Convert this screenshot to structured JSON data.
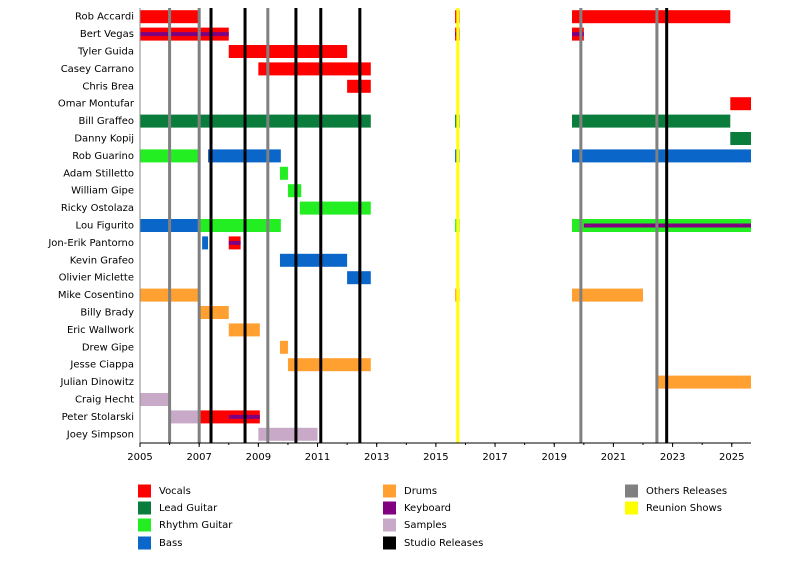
{
  "chart_data": {
    "type": "timeline",
    "xlim": [
      2005,
      2025.65
    ],
    "xticks": [
      2005,
      2007,
      2009,
      2011,
      2013,
      2015,
      2017,
      2019,
      2021,
      2023,
      2025
    ],
    "series": [
      {
        "name": "Vocals",
        "color": "#ff0000"
      },
      {
        "name": "Lead Guitar",
        "color": "#0a7d3c"
      },
      {
        "name": "Rhythm Guitar",
        "color": "#22ee22"
      },
      {
        "name": "Bass",
        "color": "#0a66c8"
      },
      {
        "name": "Drums",
        "color": "#ffa030"
      },
      {
        "name": "Keyboard",
        "color": "#800080"
      },
      {
        "name": "Samples",
        "color": "#c8aac8"
      },
      {
        "name": "Studio Releases",
        "color": "#000000",
        "lines": [
          2007.4,
          2008.55,
          2010.27,
          2011.11,
          2012.43,
          2022.8
        ]
      },
      {
        "name": "Others Releases",
        "color": "#808080",
        "lines": [
          2006.0,
          2007.0,
          2009.32,
          2019.9,
          2022.47
        ]
      },
      {
        "name": "Reunion Shows",
        "color": "#ffff00",
        "lines": [
          2015.74
        ]
      }
    ],
    "rows": [
      {
        "name": "Rob Accardi",
        "bars": [
          {
            "role": "Vocals",
            "start": 2005,
            "end": 2007
          },
          {
            "role": "Vocals",
            "start": 2015.65,
            "end": 2015.8
          },
          {
            "role": "Vocals",
            "start": 2019.6,
            "end": 2024.95
          }
        ]
      },
      {
        "name": "Bert Vegas",
        "bars": [
          {
            "role": "Vocals",
            "start": 2005,
            "end": 2008
          },
          {
            "role": "Keyboard",
            "start": 2005,
            "end": 2008
          },
          {
            "role": "Vocals",
            "start": 2015.65,
            "end": 2015.8
          },
          {
            "role": "Keyboard",
            "start": 2015.65,
            "end": 2015.8
          },
          {
            "role": "Vocals",
            "start": 2019.6,
            "end": 2020
          },
          {
            "role": "Keyboard",
            "start": 2019.6,
            "end": 2020
          }
        ]
      },
      {
        "name": "Tyler Guida",
        "bars": [
          {
            "role": "Vocals",
            "start": 2008,
            "end": 2012
          }
        ]
      },
      {
        "name": "Casey Carrano",
        "bars": [
          {
            "role": "Vocals",
            "start": 2009,
            "end": 2012.8
          }
        ]
      },
      {
        "name": "Chris Brea",
        "bars": [
          {
            "role": "Vocals",
            "start": 2012,
            "end": 2012.8
          }
        ]
      },
      {
        "name": "Omar Montufar",
        "bars": [
          {
            "role": "Vocals",
            "start": 2024.95,
            "end": 2025.65
          }
        ]
      },
      {
        "name": "Bill Graffeo",
        "bars": [
          {
            "role": "Lead Guitar",
            "start": 2005,
            "end": 2012.8
          },
          {
            "role": "Lead Guitar",
            "start": 2015.65,
            "end": 2015.8
          },
          {
            "role": "Lead Guitar",
            "start": 2019.6,
            "end": 2024.95
          }
        ]
      },
      {
        "name": "Danny Kopij",
        "bars": [
          {
            "role": "Lead Guitar",
            "start": 2024.95,
            "end": 2025.65
          }
        ]
      },
      {
        "name": "Rob Guarino",
        "bars": [
          {
            "role": "Rhythm Guitar",
            "start": 2005,
            "end": 2007
          },
          {
            "role": "Bass",
            "start": 2007.3,
            "end": 2009.76
          },
          {
            "role": "Bass",
            "start": 2015.65,
            "end": 2015.8
          },
          {
            "role": "Bass",
            "start": 2019.6,
            "end": 2025.65
          }
        ]
      },
      {
        "name": "Adam Stilletto",
        "bars": [
          {
            "role": "Rhythm Guitar",
            "start": 2009.73,
            "end": 2010
          }
        ]
      },
      {
        "name": "William Gipe",
        "bars": [
          {
            "role": "Rhythm Guitar",
            "start": 2010,
            "end": 2010.45
          }
        ]
      },
      {
        "name": "Ricky Ostolaza",
        "bars": [
          {
            "role": "Rhythm Guitar",
            "start": 2010.4,
            "end": 2012.8
          }
        ]
      },
      {
        "name": "Lou Figurito",
        "bars": [
          {
            "role": "Bass",
            "start": 2005,
            "end": 2007
          },
          {
            "role": "Rhythm Guitar",
            "start": 2007,
            "end": 2009.76
          },
          {
            "role": "Rhythm Guitar",
            "start": 2015.65,
            "end": 2015.8
          },
          {
            "role": "Rhythm Guitar",
            "start": 2019.6,
            "end": 2025.65
          },
          {
            "role": "Keyboard",
            "start": 2020,
            "end": 2025.65
          }
        ]
      },
      {
        "name": "Jon-Erik Pantorno",
        "bars": [
          {
            "role": "Bass",
            "start": 2007.1,
            "end": 2007.3
          },
          {
            "role": "Vocals",
            "start": 2008,
            "end": 2008.4
          },
          {
            "role": "Keyboard",
            "start": 2008,
            "end": 2008.4
          }
        ]
      },
      {
        "name": "Kevin Grafeo",
        "bars": [
          {
            "role": "Bass",
            "start": 2009.73,
            "end": 2012
          }
        ]
      },
      {
        "name": "Olivier Miclette",
        "bars": [
          {
            "role": "Bass",
            "start": 2012,
            "end": 2012.8
          }
        ]
      },
      {
        "name": "Mike Cosentino",
        "bars": [
          {
            "role": "Drums",
            "start": 2005,
            "end": 2007
          },
          {
            "role": "Drums",
            "start": 2015.65,
            "end": 2015.8
          },
          {
            "role": "Drums",
            "start": 2019.6,
            "end": 2022
          }
        ]
      },
      {
        "name": "Billy Brady",
        "bars": [
          {
            "role": "Drums",
            "start": 2007,
            "end": 2008
          }
        ]
      },
      {
        "name": "Eric Wallwork",
        "bars": [
          {
            "role": "Drums",
            "start": 2008,
            "end": 2009.05
          }
        ]
      },
      {
        "name": "Drew Gipe",
        "bars": [
          {
            "role": "Drums",
            "start": 2009.73,
            "end": 2010
          }
        ]
      },
      {
        "name": "Jesse Ciappa",
        "bars": [
          {
            "role": "Drums",
            "start": 2010,
            "end": 2012.8
          }
        ]
      },
      {
        "name": "Julian Dinowitz",
        "bars": [
          {
            "role": "Drums",
            "start": 2022.45,
            "end": 2025.65
          }
        ]
      },
      {
        "name": "Craig Hecht",
        "bars": [
          {
            "role": "Samples",
            "start": 2005,
            "end": 2006
          }
        ]
      },
      {
        "name": "Peter Stolarski",
        "bars": [
          {
            "role": "Samples",
            "start": 2006,
            "end": 2007
          },
          {
            "role": "Vocals",
            "start": 2007,
            "end": 2009.05
          },
          {
            "role": "Keyboard",
            "start": 2008,
            "end": 2009.05
          }
        ]
      },
      {
        "name": "Joey Simpson",
        "bars": [
          {
            "role": "Samples",
            "start": 2009,
            "end": 2011
          }
        ]
      }
    ]
  }
}
